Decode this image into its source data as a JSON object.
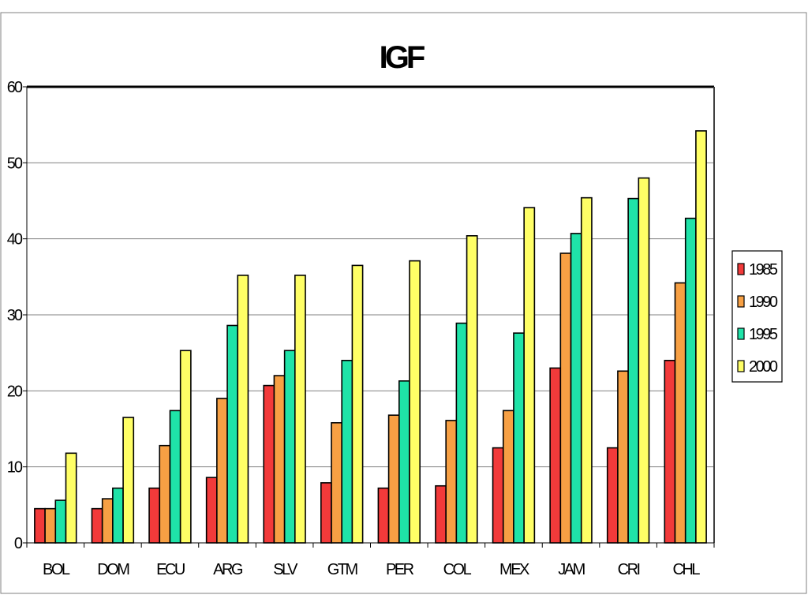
{
  "chart_data": {
    "type": "bar",
    "title": "IGF",
    "categories": [
      "BOL",
      "DOM",
      "ECU",
      "ARG",
      "SLV",
      "GTM",
      "PER",
      "COL",
      "MEX",
      "JAM",
      "CRI",
      "CHL"
    ],
    "series": [
      {
        "name": "1985",
        "color": "#f23a3a",
        "values": [
          4.5,
          4.5,
          7.2,
          8.6,
          20.7,
          7.9,
          7.2,
          7.5,
          12.5,
          23.0,
          12.5,
          24.0
        ]
      },
      {
        "name": "1990",
        "color": "#f7a044",
        "values": [
          4.5,
          5.8,
          12.8,
          19.0,
          22.0,
          15.8,
          16.8,
          16.1,
          17.4,
          38.1,
          22.6,
          34.2
        ]
      },
      {
        "name": "1995",
        "color": "#1fe3a8",
        "values": [
          5.6,
          7.2,
          17.4,
          28.6,
          25.3,
          24.0,
          21.3,
          28.9,
          27.6,
          40.7,
          45.3,
          42.7
        ]
      },
      {
        "name": "2000",
        "color": "#ffff66",
        "values": [
          11.8,
          16.5,
          25.3,
          35.2,
          35.2,
          36.5,
          37.1,
          40.4,
          44.1,
          45.4,
          48.0,
          54.2
        ]
      }
    ],
    "y_ticks": [
      "0",
      "10",
      "20",
      "30",
      "40",
      "50",
      "60"
    ],
    "ylim": [
      0,
      60
    ],
    "grid": true,
    "legend_position": "right"
  }
}
